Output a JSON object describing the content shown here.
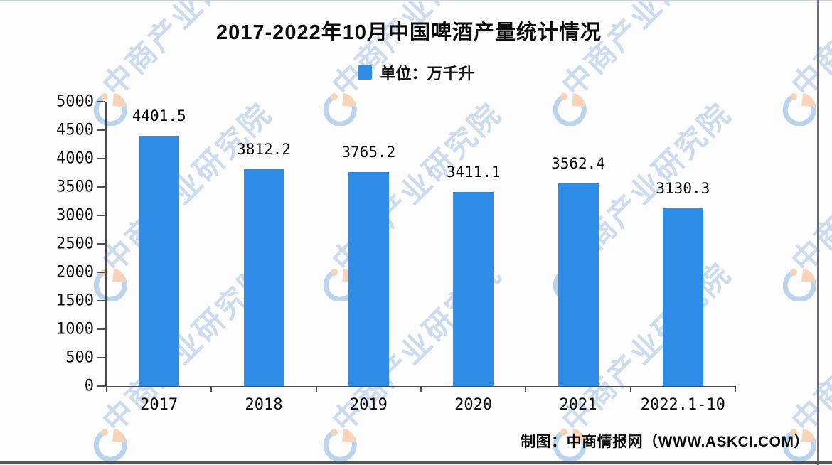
{
  "title": "2017-2022年10月中国啤酒产量统计情况",
  "legend": {
    "label": "单位：万千升"
  },
  "footer": {
    "text": "制图：中商情报网（WWW.ASKCI.COM）"
  },
  "watermark": {
    "text": "中商产业研究院"
  },
  "colors": {
    "bar": "#2E8CE6",
    "axis": "#4a4a4f",
    "watermark_text": "#89acd7",
    "logo_blue": "#aecdea",
    "logo_peach": "#f7cdae"
  },
  "chart_data": {
    "type": "bar",
    "title": "2017-2022年10月中国啤酒产量统计情况",
    "categories": [
      "2017",
      "2018",
      "2019",
      "2020",
      "2021",
      "2022.1-10"
    ],
    "values": [
      4401.5,
      3812.2,
      3765.2,
      3411.1,
      3562.4,
      3130.3
    ],
    "data_labels": [
      "4401.5",
      "3812.2",
      "3765.2",
      "3411.1",
      "3562.4",
      "3130.3"
    ],
    "legend": [
      "单位：万千升"
    ],
    "legend_position": "top-center",
    "xlabel": "",
    "ylabel": "",
    "ylim": [
      0,
      5000
    ],
    "ytick_step": 500,
    "ytick_labels": [
      "0",
      "500",
      "1000",
      "1500",
      "2000",
      "2500",
      "3000",
      "3500",
      "4000",
      "4500",
      "5000"
    ],
    "grid": false,
    "source_note": "制图：中商情报网（WWW.ASKCI.COM）"
  }
}
